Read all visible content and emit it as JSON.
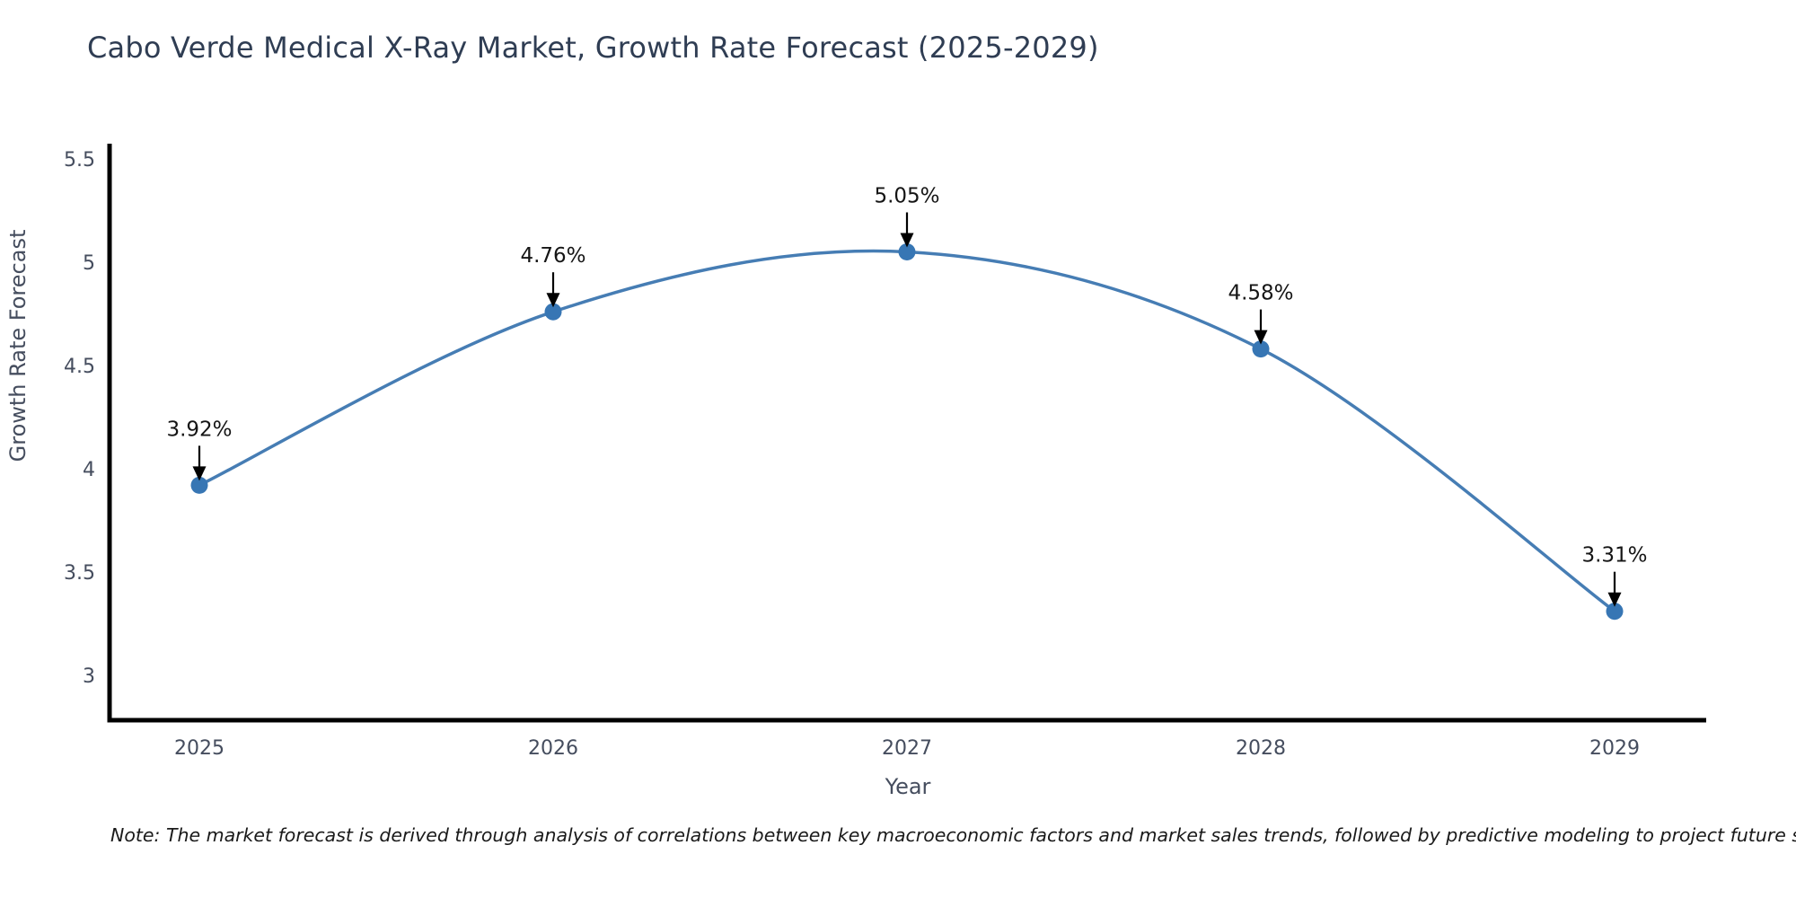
{
  "title": "Cabo Verde Medical X-Ray Market, Growth Rate Forecast (2025-2029)",
  "note": "Note: The market forecast is derived through analysis of correlations between key macroeconomic factors and market sales trends, followed by predictive modeling to project future sales.",
  "chart_data": {
    "type": "line",
    "line_shape": "spline",
    "title": "Cabo Verde Medical X-Ray Market, Growth Rate Forecast (2025-2029)",
    "xlabel": "Year",
    "ylabel": "Growth Rate Forecast",
    "x": [
      2025,
      2026,
      2027,
      2028,
      2029
    ],
    "categories": [
      "2025",
      "2026",
      "2027",
      "2028",
      "2029"
    ],
    "series": [
      {
        "name": "Growth Rate Forecast",
        "values": [
          3.92,
          4.76,
          5.05,
          4.58,
          3.31
        ]
      }
    ],
    "point_labels": [
      "3.92%",
      "4.76%",
      "5.05%",
      "4.58%",
      "3.31%"
    ],
    "y_ticks": [
      3,
      3.5,
      4,
      4.5,
      5,
      5.5
    ],
    "y_tick_labels": [
      "3",
      "3.5",
      "4",
      "4.5",
      "5",
      "5.5"
    ],
    "ylim": [
      2.78,
      5.57
    ],
    "grid": false,
    "legend": "none",
    "markers": true,
    "annotations_arrows": true,
    "colors": {
      "line": "#467db4",
      "marker": "#3776b4",
      "axis": "#000000",
      "title": "#2f3d53",
      "tick": "#454d5e",
      "axis_title": "#454d5e",
      "annotation": "#151515",
      "arrow": "#000000",
      "background": "#ffffff"
    }
  }
}
